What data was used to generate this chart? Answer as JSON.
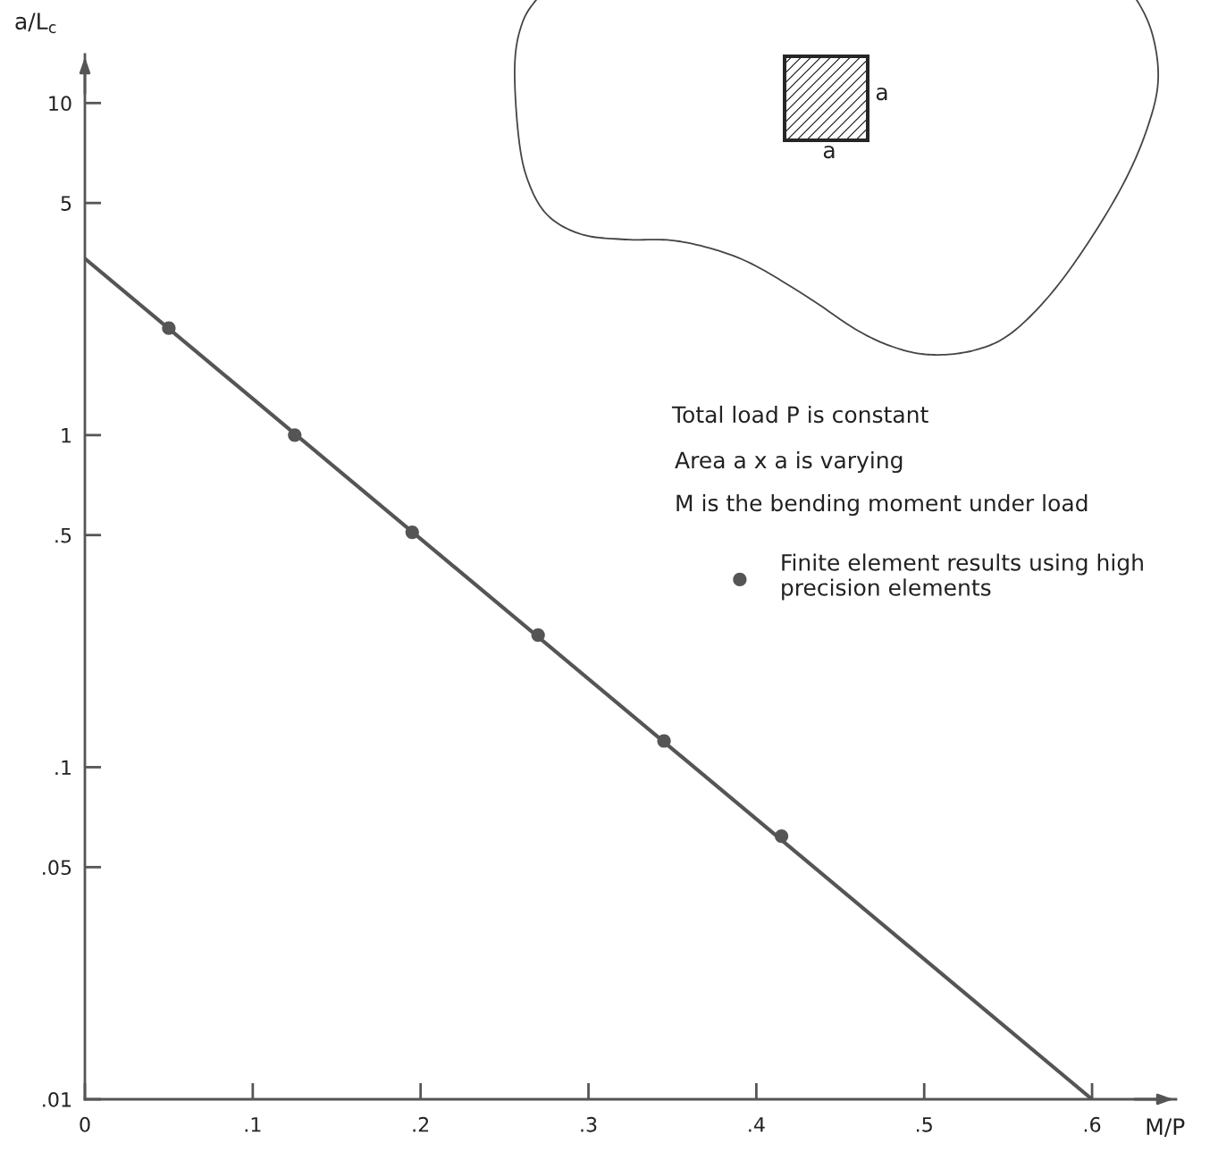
{
  "chart_data": {
    "type": "line",
    "ylabel": "a/L$_{c}$",
    "xlabel": "M/P",
    "annotations": [
      "Total load P is constant",
      "Area a x a is varying",
      "M is the bending moment under load",
      "a",
      "a"
    ],
    "series": [
      {
        "type": "line",
        "color": "#555555",
        "x": [
          0,
          0.6
        ],
        "values": [
          3.4,
          0.01
        ]
      },
      {
        "type": "scatter",
        "name": "Finite element results using high precision elements",
        "color": "#555555",
        "marker": "circle",
        "x": [
          0.05,
          0.125,
          0.195,
          0.27,
          0.345,
          0.415
        ],
        "values": [
          2.1,
          1.0,
          0.51,
          0.25,
          0.12,
          0.062
        ]
      }
    ],
    "log": "y",
    "xlim": [
      0,
      0.65
    ],
    "ylim": [
      0.01,
      14
    ],
    "xticks": [
      0,
      {
        "value": 0.1,
        "label": ".1"
      },
      {
        "value": 0.2,
        "label": ".2"
      },
      {
        "value": 0.3,
        "label": ".3"
      },
      {
        "value": 0.4,
        "label": ".4"
      },
      {
        "value": 0.5,
        "label": ".5"
      },
      {
        "value": 0.6,
        "label": ".6"
      }
    ],
    "yticks": [
      {
        "value": 0.01,
        "label": ".01"
      },
      {
        "value": 0.05,
        "label": ".05"
      },
      {
        "value": 0.1,
        "label": ".1"
      },
      {
        "value": 0.5,
        "label": ".5"
      },
      1,
      5,
      10
    ],
    "legend": "right"
  }
}
